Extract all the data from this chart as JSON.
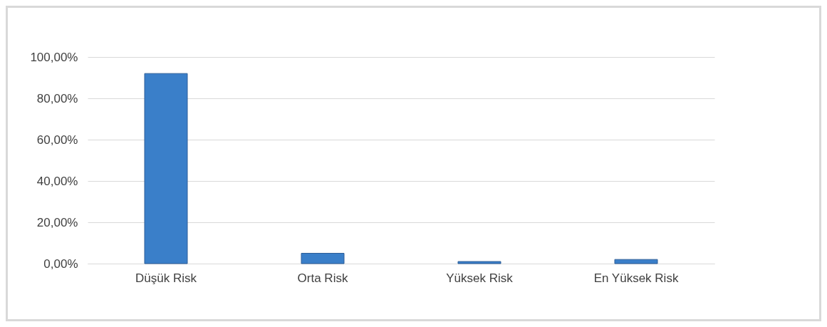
{
  "chart_data": {
    "type": "bar",
    "categories": [
      "Düşük Risk",
      "Orta Risk",
      "Yüksek Risk",
      "En Yüksek Risk"
    ],
    "values": [
      92,
      5,
      1,
      2
    ],
    "color": "#3a7fc9",
    "ylim": [
      0,
      100
    ],
    "yticks": [
      {
        "value": 0,
        "label": "0,00%"
      },
      {
        "value": 20,
        "label": "20,00%"
      },
      {
        "value": 40,
        "label": "40,00%"
      },
      {
        "value": 60,
        "label": "60,00%"
      },
      {
        "value": 80,
        "label": "80,00%"
      },
      {
        "value": 100,
        "label": "100,00%"
      }
    ],
    "grid": "y"
  }
}
